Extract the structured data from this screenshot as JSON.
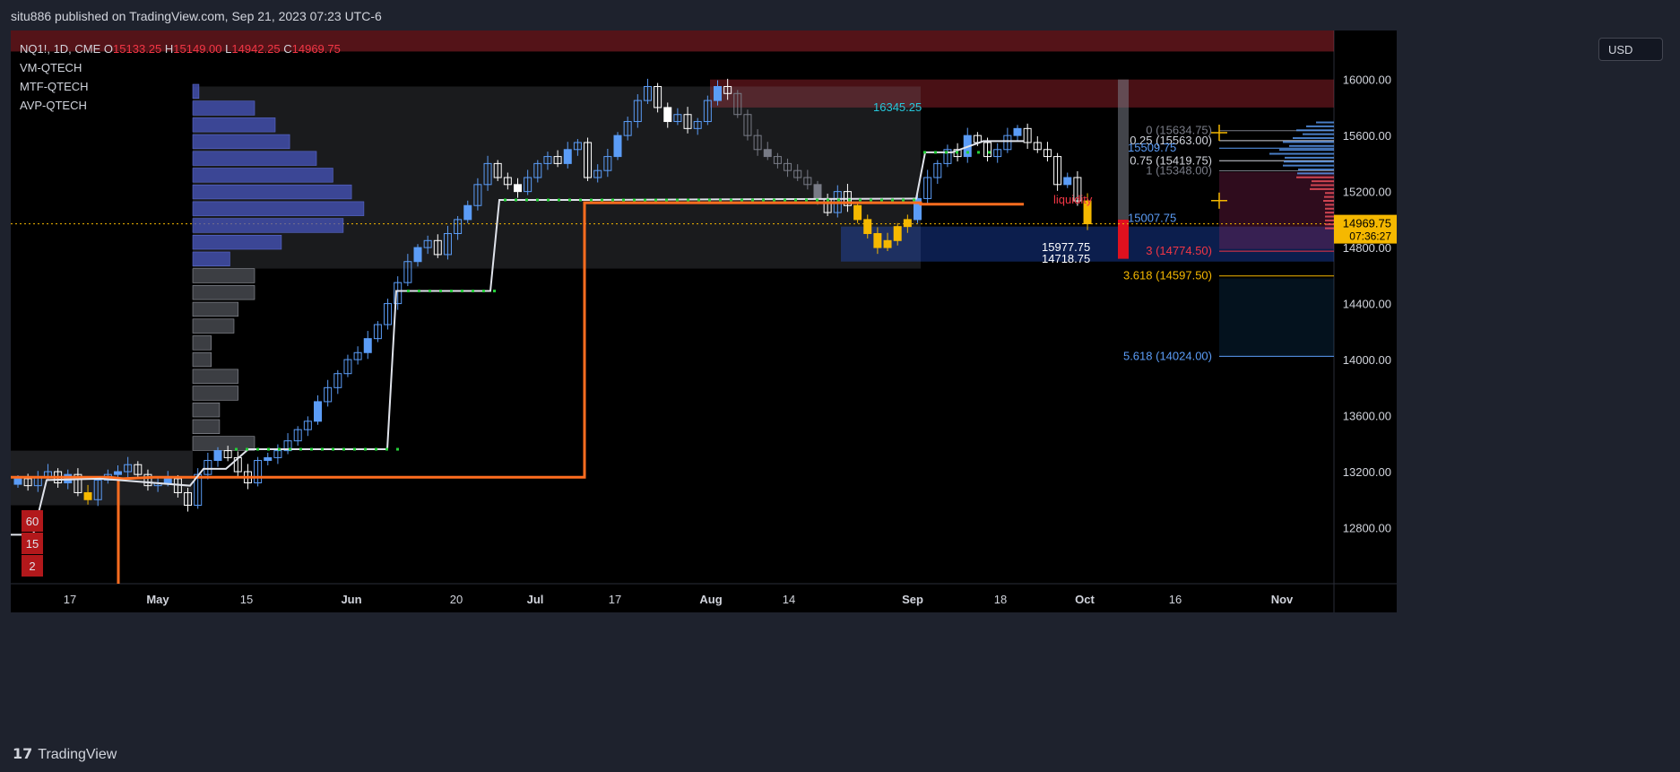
{
  "header": {
    "publisher": "situ886 published on TradingView.com, Sep 21, 2023 07:23 UTC-6"
  },
  "footer": {
    "brand_logo": "17",
    "brand": "TradingView"
  },
  "legend": {
    "symbol": "NQ1!, 1D, CME",
    "open_label": "O",
    "open": "15133.25",
    "high_label": "H",
    "high": "15149.00",
    "low_label": "L",
    "low": "14942.25",
    "close_label": "C",
    "close": "14969.75",
    "indicators": [
      "VM-QTECH",
      "MTF-QTECH",
      "AVP-QTECH"
    ]
  },
  "currency": "USD",
  "colors": {
    "background": "#000000",
    "up_candle": "#5b9cf6",
    "down_candle": "#ffffff",
    "gray_candle": "#787b86",
    "orange_line": "#ff6d1f",
    "gold": "#f5b800",
    "red_zone": "#f23645",
    "cyan_text": "#26c6da"
  },
  "chart_data": {
    "type": "candlestick",
    "symbol": "NQ1!",
    "interval": "1D",
    "ylim": [
      12400,
      16350
    ],
    "y_ticks": [
      12800,
      13200,
      13600,
      14000,
      14400,
      14800,
      15200,
      15600,
      16000
    ],
    "y_tick_labels": [
      "12800.00",
      "13200.00",
      "13600.00",
      "14000.00",
      "14400.00",
      "14800.00",
      "15200.00",
      "15600.00",
      "16000.00"
    ],
    "x_tick_labels": [
      "17",
      "May",
      "15",
      "Jun",
      "20",
      "Jul",
      "17",
      "Aug",
      "14",
      "Sep",
      "18",
      "Oct",
      "16",
      "Nov"
    ],
    "last_price": "14969.75",
    "countdown": "07:36:27",
    "closes": [
      13150,
      13100,
      13160,
      13200,
      13120,
      13180,
      13050,
      13000,
      13140,
      13180,
      13200,
      13250,
      13180,
      13100,
      13120,
      13150,
      13050,
      12960,
      13180,
      13280,
      13350,
      13300,
      13200,
      13120,
      13280,
      13300,
      13350,
      13420,
      13500,
      13560,
      13700,
      13800,
      13900,
      14000,
      14050,
      14150,
      14250,
      14400,
      14550,
      14700,
      14800,
      14850,
      14750,
      14900,
      15000,
      15100,
      15250,
      15400,
      15300,
      15250,
      15200,
      15300,
      15400,
      15450,
      15400,
      15500,
      15550,
      15300,
      15350,
      15450,
      15600,
      15700,
      15850,
      15950,
      15800,
      15700,
      15750,
      15650,
      15700,
      15850,
      15950,
      15900,
      15750,
      15600,
      15500,
      15450,
      15400,
      15350,
      15300,
      15250,
      15150,
      15050,
      15200,
      15100,
      15000,
      14900,
      14800,
      14850,
      14950,
      15000,
      15150,
      15300,
      15400,
      15500,
      15450,
      15600,
      15550,
      15450,
      15500,
      15600,
      15650,
      15550,
      15500,
      15450,
      15250,
      15300,
      15133,
      14970
    ],
    "volume_profile_left": [
      0.03,
      0.3,
      0.4,
      0.47,
      0.6,
      0.68,
      0.77,
      0.83,
      0.73,
      0.43,
      0.18,
      0.3,
      0.3,
      0.22,
      0.2,
      0.09,
      0.09,
      0.22,
      0.22,
      0.13,
      0.13,
      0.3
    ],
    "annotations": {
      "swing_high_label": "16345.25",
      "fib_0": "0 (15634.75)",
      "fib_025": "0.25 (15563.00)",
      "fib_05": "15509.75",
      "fib_075": "0.75 (15419.75)",
      "fib_1": "1 (15348.00)",
      "liquidity": "liquidity",
      "level_15007": "15007.75",
      "fib_3": "3 (14774.50)",
      "fib_3618": "3.618 (14597.50)",
      "fib_5618": "5.618 (14024.00)",
      "label_a": "15977.75",
      "label_b": "14718.75",
      "vm_badges": [
        "60",
        "15",
        "2"
      ]
    }
  }
}
